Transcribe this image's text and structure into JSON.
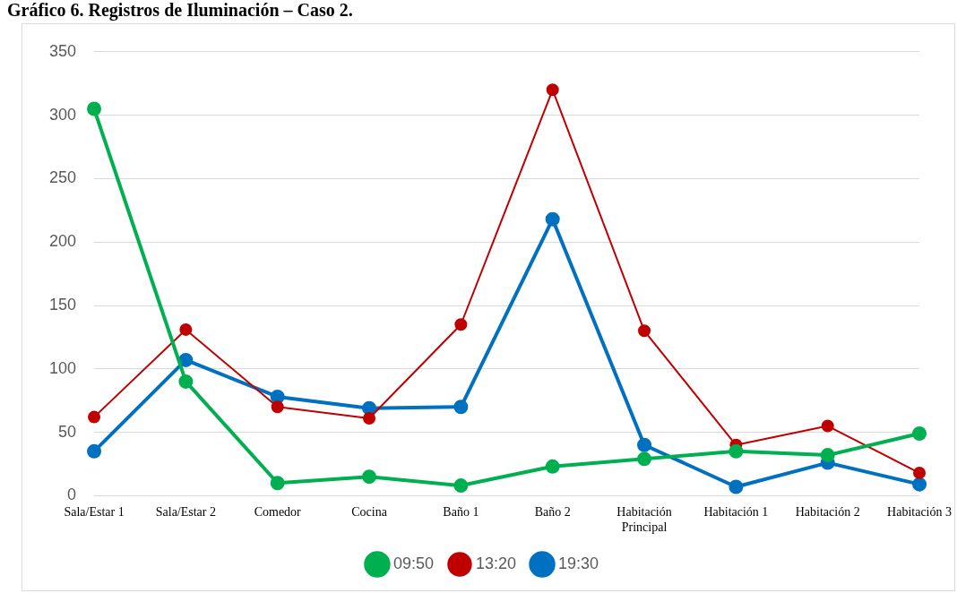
{
  "chart_data": {
    "type": "line",
    "title": "Gráfico 6. Registros de Iluminación – Caso 2.",
    "categories": [
      "Sala/Estar 1",
      "Sala/Estar 2",
      "Comedor",
      "Cocina",
      "Baño 1",
      "Baño 2",
      "Habitación Principal",
      "Habitación 1",
      "Habitación 2",
      "Habitación 3"
    ],
    "series": [
      {
        "name": "09:50",
        "color": "#00b050",
        "values": [
          305,
          90,
          10,
          15,
          8,
          23,
          29,
          35,
          32,
          49
        ]
      },
      {
        "name": "13:20",
        "color": "#c00000",
        "values": [
          62,
          131,
          70,
          61,
          135,
          320,
          130,
          40,
          55,
          18
        ]
      },
      {
        "name": "19:30",
        "color": "#0070c0",
        "values": [
          35,
          107,
          78,
          69,
          70,
          218,
          40,
          7,
          26,
          9
        ]
      }
    ],
    "ylim": [
      0,
      350
    ],
    "yticks": [
      0,
      50,
      100,
      150,
      200,
      250,
      300,
      350
    ],
    "grid": "y",
    "legend": "bottom",
    "marker": "circle",
    "line_style": "solid"
  }
}
